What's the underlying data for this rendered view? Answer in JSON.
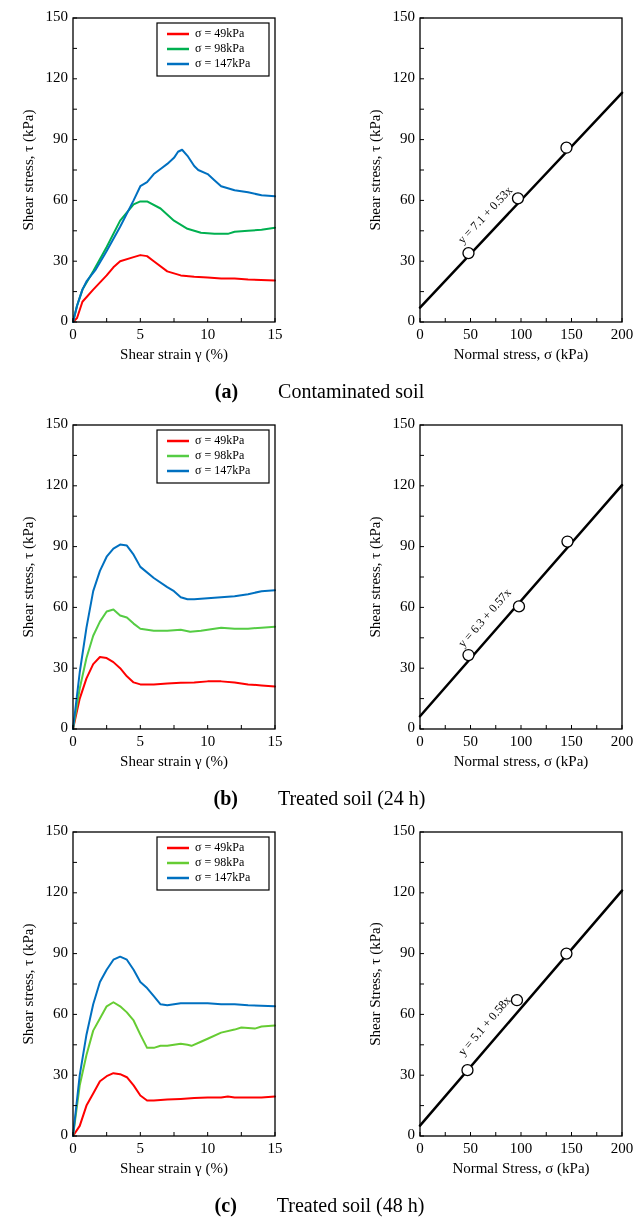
{
  "chart_data": [
    {
      "type": "line",
      "xlabel": "Shear strain γ (%)",
      "ylabel": "Shear stress, τ (kPa)",
      "xlim": [
        0,
        15
      ],
      "ylim": [
        0,
        150
      ],
      "xticks": [
        0,
        {
          "value": 2.5,
          "label": null
        },
        5,
        {
          "value": 7.5,
          "label": null
        },
        10,
        {
          "value": 12.5,
          "label": null
        },
        15
      ],
      "yticks": [
        0,
        {
          "value": 15,
          "label": null
        },
        30,
        {
          "value": 45,
          "label": null
        },
        60,
        {
          "value": 75,
          "label": null
        },
        90,
        {
          "value": 105,
          "label": null
        },
        120,
        {
          "value": 135,
          "label": null
        },
        150
      ],
      "legend": "top right",
      "marker": "none",
      "grid": false,
      "annotations": [
        "(a)",
        "Contaminated soil"
      ],
      "series": [
        {
          "name": "σ = 49kPa",
          "color": "#ff0000",
          "x": [
            0,
            0.3,
            0.7,
            1.5,
            2.5,
            3,
            3.5,
            4.5,
            5,
            5.5,
            6,
            7,
            8,
            9,
            10,
            11,
            12,
            13,
            15
          ],
          "values": [
            0,
            2,
            10,
            16,
            23,
            27,
            30,
            32,
            33,
            32.5,
            30,
            25,
            23,
            22.3,
            22,
            21.5,
            21.5,
            21,
            20.5
          ]
        },
        {
          "name": "σ = 98kPa",
          "color": "#00b050",
          "x": [
            0,
            0.3,
            0.7,
            1.5,
            2.5,
            3.5,
            4.5,
            5,
            5.5,
            6.5,
            7.5,
            8.5,
            9.5,
            10.5,
            11.5,
            12,
            13,
            14,
            15
          ],
          "values": [
            0,
            8,
            16,
            25,
            37,
            50,
            58,
            59.5,
            59.5,
            56,
            50,
            46,
            44,
            43.5,
            43.5,
            44.5,
            45,
            45.5,
            46.5
          ]
        },
        {
          "name": "σ = 147kPa",
          "color": "#0070c0",
          "x": [
            0,
            0.3,
            0.7,
            1,
            1.7,
            2.5,
            3.5,
            4.5,
            5,
            5.5,
            6,
            6.5,
            7,
            7.5,
            7.8,
            8.1,
            8.5,
            9,
            9.3,
            10,
            10.5,
            11,
            12,
            13,
            14,
            15
          ],
          "values": [
            0,
            8,
            16,
            20,
            26,
            35,
            47,
            60,
            67,
            69,
            73,
            75.5,
            78,
            81,
            84,
            85,
            82,
            77,
            75,
            73,
            70,
            67,
            65,
            64,
            62.5,
            62
          ]
        }
      ]
    },
    {
      "type": "scatter",
      "xlabel": "Normal stress, σ (kPa)",
      "ylabel": "Shear stress, τ  (kPa)",
      "xlim": [
        0,
        200
      ],
      "ylim": [
        0,
        150
      ],
      "xticks": [
        0,
        {
          "value": 25,
          "label": null
        },
        50,
        {
          "value": 75,
          "label": null
        },
        100,
        {
          "value": 125,
          "label": null
        },
        150,
        {
          "value": 175,
          "label": null
        },
        200
      ],
      "yticks": [
        0,
        {
          "value": 15,
          "label": null
        },
        30,
        {
          "value": 45,
          "label": null
        },
        60,
        {
          "value": 75,
          "label": null
        },
        90,
        {
          "value": 105,
          "label": null
        },
        120,
        {
          "value": 135,
          "label": null
        },
        150
      ],
      "grid": false,
      "annotations": [
        "y = 7.1 + 0.53x"
      ],
      "series": [
        {
          "color": "#000000",
          "marker": "circle",
          "x": [
            48,
            97,
            145
          ],
          "values": [
            34,
            61,
            86
          ]
        },
        {
          "type": "line",
          "marker": "none",
          "color": "#000000",
          "x": [
            0,
            200
          ],
          "values": [
            7.1,
            113.1
          ]
        }
      ]
    },
    {
      "type": "line",
      "xlabel": "Shear strain γ (%)",
      "ylabel": "Shear stress, τ (kPa)",
      "xlim": [
        0,
        15
      ],
      "ylim": [
        0,
        150
      ],
      "xticks": [
        0,
        {
          "value": 2.5,
          "label": null
        },
        5,
        {
          "value": 7.5,
          "label": null
        },
        10,
        {
          "value": 12.5,
          "label": null
        },
        15
      ],
      "yticks": [
        0,
        {
          "value": 15,
          "label": null
        },
        30,
        {
          "value": 45,
          "label": null
        },
        60,
        {
          "value": 75,
          "label": null
        },
        90,
        {
          "value": 105,
          "label": null
        },
        120,
        {
          "value": 135,
          "label": null
        },
        150
      ],
      "legend": "top right",
      "marker": "none",
      "grid": false,
      "annotations": [
        "(b)",
        "Treated soil (24 h)"
      ],
      "series": [
        {
          "name": "σ = 49kPa",
          "color": "#ff0000",
          "x": [
            0,
            0.5,
            1,
            1.5,
            2,
            2.5,
            3,
            3.5,
            4,
            4.5,
            5,
            6,
            7,
            8,
            9,
            10,
            11,
            12,
            13,
            14,
            15
          ],
          "values": [
            0,
            15,
            25,
            32,
            35.5,
            35,
            33,
            30,
            26,
            23,
            22,
            22,
            22.5,
            22.8,
            23,
            23.5,
            23.5,
            23,
            22,
            21.5,
            21
          ]
        },
        {
          "name": "σ = 98kPa",
          "color": "#55cc44",
          "x": [
            0,
            0.5,
            1,
            1.5,
            2,
            2.5,
            3,
            3.5,
            4,
            4.5,
            5,
            6,
            7,
            8,
            8.7,
            9.5,
            10,
            11,
            12,
            13,
            14,
            15
          ],
          "values": [
            0,
            20,
            35,
            46,
            53,
            58,
            59,
            56,
            55,
            52,
            49.5,
            48.5,
            48.5,
            49,
            48,
            48.5,
            49,
            50,
            49.5,
            49.5,
            50,
            50.5
          ]
        },
        {
          "name": "σ = 147kPa",
          "color": "#0070c0",
          "x": [
            0,
            0.5,
            1,
            1.5,
            2,
            2.5,
            3,
            3.5,
            4,
            4.5,
            5,
            6,
            7,
            7.5,
            8,
            8.5,
            9,
            10,
            11,
            12,
            13,
            14,
            15
          ],
          "values": [
            0,
            28,
            50,
            68,
            78,
            85,
            89,
            91,
            90.5,
            86,
            80,
            74.5,
            70,
            68,
            65,
            64,
            64,
            64.5,
            65,
            65.5,
            66.5,
            68,
            68.5
          ]
        }
      ]
    },
    {
      "type": "scatter",
      "xlabel": "Normal stress, σ (kPa)",
      "ylabel": "Shear stress, τ  (kPa)",
      "xlim": [
        0,
        200
      ],
      "ylim": [
        0,
        150
      ],
      "xticks": [
        0,
        {
          "value": 25,
          "label": null
        },
        50,
        {
          "value": 75,
          "label": null
        },
        100,
        {
          "value": 125,
          "label": null
        },
        150,
        {
          "value": 175,
          "label": null
        },
        200
      ],
      "yticks": [
        0,
        {
          "value": 15,
          "label": null
        },
        30,
        {
          "value": 45,
          "label": null
        },
        60,
        {
          "value": 75,
          "label": null
        },
        90,
        {
          "value": 105,
          "label": null
        },
        120,
        {
          "value": 135,
          "label": null
        },
        150
      ],
      "grid": false,
      "annotations": [
        "y = 6.3 + 0.57x"
      ],
      "series": [
        {
          "color": "#000000",
          "marker": "circle",
          "x": [
            48,
            98,
            146
          ],
          "values": [
            36.5,
            60.5,
            92.5
          ]
        },
        {
          "type": "line",
          "marker": "none",
          "color": "#000000",
          "x": [
            0,
            200
          ],
          "values": [
            6.3,
            120.3
          ]
        }
      ]
    },
    {
      "type": "line",
      "xlabel": "Shear strain γ (%)",
      "ylabel": "Shear stress, τ (kPa)",
      "xlim": [
        0,
        15
      ],
      "ylim": [
        0,
        150
      ],
      "xticks": [
        0,
        {
          "value": 2.5,
          "label": null
        },
        5,
        {
          "value": 7.5,
          "label": null
        },
        10,
        {
          "value": 12.5,
          "label": null
        },
        15
      ],
      "yticks": [
        0,
        {
          "value": 15,
          "label": null
        },
        30,
        {
          "value": 45,
          "label": null
        },
        60,
        {
          "value": 75,
          "label": null
        },
        90,
        {
          "value": 105,
          "label": null
        },
        120,
        {
          "value": 135,
          "label": null
        },
        150
      ],
      "legend": "top right",
      "marker": "none",
      "grid": false,
      "annotations": [
        "(c)",
        "Treated soil (48 h)"
      ],
      "series": [
        {
          "name": "σ = 49kPa",
          "color": "#ff0000",
          "x": [
            0,
            0.5,
            1,
            1.5,
            2,
            2.5,
            3,
            3.5,
            4,
            4.5,
            5,
            5.5,
            6,
            7,
            8,
            9,
            10,
            11,
            11.5,
            12,
            13,
            14,
            15
          ],
          "values": [
            0,
            5,
            15,
            21,
            27,
            29.5,
            31,
            30.5,
            29,
            25,
            20,
            17.5,
            17.5,
            18,
            18.3,
            18.7,
            19,
            19,
            19.5,
            19,
            19,
            19,
            19.5
          ]
        },
        {
          "name": "σ = 98kPa",
          "color": "#66cc33",
          "x": [
            0,
            0.5,
            1,
            1.5,
            2,
            2.5,
            3,
            3.5,
            4,
            4.5,
            5,
            5.5,
            6,
            6.5,
            7,
            8,
            8.5,
            8.8,
            9.5,
            10,
            11,
            12,
            12.5,
            13.5,
            14,
            15
          ],
          "values": [
            0,
            25,
            40,
            52,
            58,
            64,
            66,
            64,
            61,
            57,
            50,
            43.5,
            43.5,
            44.5,
            44.5,
            45.5,
            45,
            44.5,
            46.5,
            48,
            51,
            52.5,
            53.5,
            53,
            54,
            54.5
          ]
        },
        {
          "name": "σ = 147kPa",
          "color": "#0070c0",
          "x": [
            0,
            0.5,
            1,
            1.5,
            2,
            2.5,
            3,
            3.5,
            4,
            4.5,
            5,
            5.5,
            6,
            6.5,
            7,
            8,
            9,
            10,
            11,
            12,
            13,
            15
          ],
          "values": [
            0,
            30,
            50,
            65,
            76,
            82,
            87,
            88.5,
            87,
            82,
            76,
            73,
            69,
            65,
            64.5,
            65.5,
            65.5,
            65.5,
            65,
            65,
            64.5,
            64
          ]
        }
      ]
    },
    {
      "type": "scatter",
      "xlabel": "Normal Stress, σ (kPa)",
      "ylabel": "Shear Stress, τ  (kPa)",
      "xlim": [
        0,
        200
      ],
      "ylim": [
        0,
        150
      ],
      "xticks": [
        0,
        {
          "value": 25,
          "label": null
        },
        50,
        {
          "value": 75,
          "label": null
        },
        100,
        {
          "value": 125,
          "label": null
        },
        150,
        {
          "value": 175,
          "label": null
        },
        200
      ],
      "yticks": [
        0,
        {
          "value": 15,
          "label": null
        },
        30,
        {
          "value": 45,
          "label": null
        },
        60,
        {
          "value": 75,
          "label": null
        },
        90,
        {
          "value": 105,
          "label": null
        },
        120,
        {
          "value": 135,
          "label": null
        },
        150
      ],
      "grid": false,
      "annotations": [
        "y = 5.1 + 0.58x"
      ],
      "series": [
        {
          "color": "#000000",
          "marker": "circle",
          "x": [
            47,
            96,
            145
          ],
          "values": [
            32.5,
            67,
            90
          ]
        },
        {
          "type": "line",
          "marker": "none",
          "color": "#000000",
          "x": [
            0,
            200
          ],
          "values": [
            5.1,
            121.1
          ]
        }
      ]
    }
  ]
}
